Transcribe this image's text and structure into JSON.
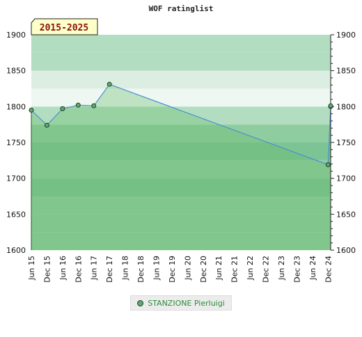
{
  "chart_data": {
    "type": "area",
    "title": "WOF ratinglist",
    "badge": "2015-2025",
    "x": [
      "2015-06",
      "2015-12",
      "2016-06",
      "2016-12",
      "2017-06",
      "2017-12",
      "2024-12",
      "2025-01",
      "2025-01"
    ],
    "series": [
      {
        "name": "STANZIONE Pierluigi",
        "values": [
          1795,
          1774,
          1797,
          1802,
          1801,
          1831,
          1719,
          1800,
          1801
        ]
      }
    ],
    "x_tick_labels": [
      "Jun 15",
      "Dec 15",
      "Jun 16",
      "Dec 16",
      "Jun 17",
      "Dec 17",
      "Jun 18",
      "Dec 18",
      "Jun 19",
      "Dec 19",
      "Jun 20",
      "Dec 20",
      "Jun 21",
      "Dec 21",
      "Jun 22",
      "Dec 22",
      "Jun 23",
      "Dec 23",
      "Jun 24",
      "Dec 24"
    ],
    "y_ticks": [
      1600,
      1650,
      1700,
      1750,
      1800,
      1850,
      1900
    ],
    "ylim": [
      1600,
      1900
    ],
    "xlim": [
      "2015-06",
      "2025-01"
    ],
    "grid": true,
    "legend_position": "bottom",
    "colors": {
      "band_dark": "#7dc494",
      "band_mid": "#8fcc9f",
      "band_light": "#b2ddc0",
      "band_pale": "#dceee2",
      "band_white": "#eef7f1",
      "area_fill": "#66bb6a",
      "line": "#4a8fd4",
      "marker": "#5fa86f",
      "badge_bg": "#ffffc8"
    }
  }
}
